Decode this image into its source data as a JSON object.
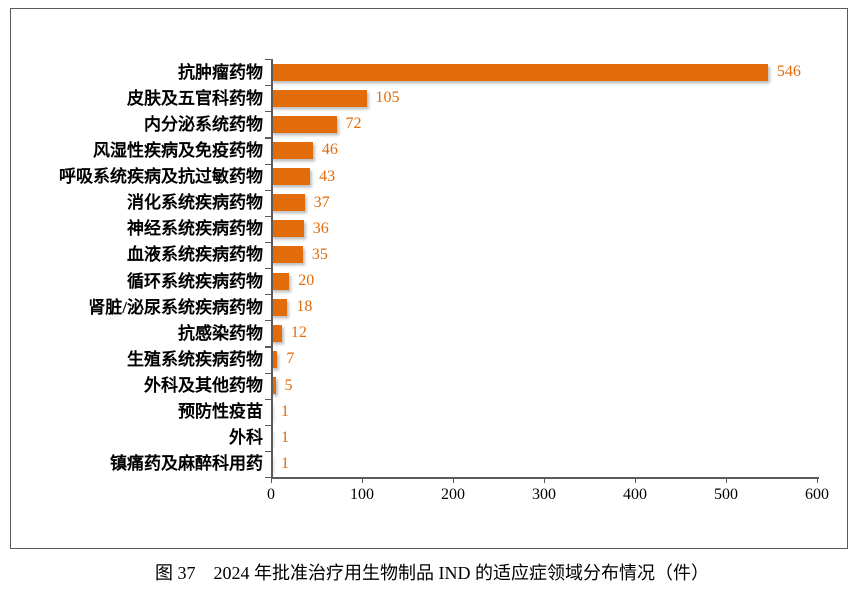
{
  "figure": {
    "caption": "图 37　2024 年批准治疗用生物制品 IND 的适应症领域分布情况（件）"
  },
  "chart_data": {
    "type": "bar",
    "orientation": "horizontal",
    "title": "",
    "xlabel": "",
    "ylabel": "",
    "categories": [
      "抗肿瘤药物",
      "皮肤及五官科药物",
      "内分泌系统药物",
      "风湿性疾病及免疫药物",
      "呼吸系统疾病及抗过敏药物",
      "消化系统疾病药物",
      "神经系统疾病药物",
      "血液系统疾病药物",
      "循环系统疾病药物",
      "肾脏/泌尿系统疾病药物",
      "抗感染药物",
      "生殖系统疾病药物",
      "外科及其他药物",
      "预防性疫苗",
      "外科",
      "镇痛药及麻醉科用药"
    ],
    "values": [
      546,
      105,
      72,
      46,
      43,
      37,
      36,
      35,
      20,
      18,
      12,
      7,
      5,
      1,
      1,
      1
    ],
    "xlim": [
      0,
      600
    ],
    "x_ticks": [
      0,
      100,
      200,
      300,
      400,
      500,
      600
    ],
    "grid": false,
    "legend": "none",
    "data_labels": true,
    "colors": {
      "bar": "#E26B0A",
      "value_label": "#E26B0A",
      "axis": "#5a5a5a"
    }
  }
}
